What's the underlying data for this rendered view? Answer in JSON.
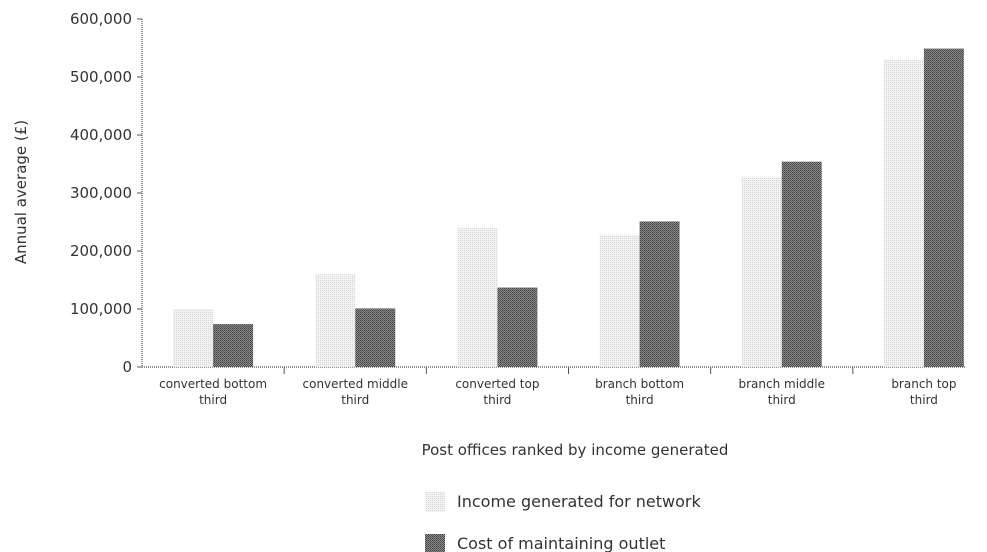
{
  "chart_data": {
    "type": "bar",
    "title": "",
    "xlabel": "Post offices ranked by income generated",
    "ylabel": "Annual average (£)",
    "ylim": [
      0,
      600000
    ],
    "yticks": [
      0,
      100000,
      200000,
      300000,
      400000,
      500000,
      600000
    ],
    "ytick_labels": [
      "0",
      "100,000",
      "200,000",
      "300,000",
      "400,000",
      "500,000",
      "600,000"
    ],
    "categories": [
      [
        "converted bottom",
        "third"
      ],
      [
        "converted middle",
        "third"
      ],
      [
        "converted top",
        "third"
      ],
      [
        "branch bottom",
        "third"
      ],
      [
        "branch middle",
        "third"
      ],
      [
        "branch top",
        "third"
      ]
    ],
    "series": [
      {
        "name": "Income generated for network",
        "color": "#e6e6e6",
        "values": [
          100000,
          160000,
          240000,
          228000,
          328000,
          530000
        ]
      },
      {
        "name": "Cost of maintaining outlet",
        "color": "#6e6e6e",
        "values": [
          74000,
          101000,
          137000,
          251000,
          354000,
          549000
        ]
      }
    ],
    "grid": false,
    "legend_position": "bottom"
  }
}
